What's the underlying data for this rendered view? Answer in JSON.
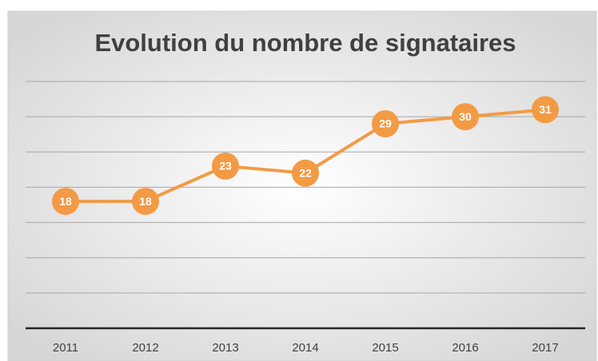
{
  "chart_data": {
    "type": "line",
    "title": "Evolution du nombre de signataires",
    "categories": [
      "2011",
      "2012",
      "2013",
      "2014",
      "2015",
      "2016",
      "2017"
    ],
    "values": [
      18,
      18,
      23,
      22,
      29,
      30,
      31
    ],
    "color": "#f39a45",
    "ylim": [
      0,
      35
    ],
    "yticks": [
      0,
      5,
      10,
      15,
      20,
      25,
      30,
      35
    ],
    "grid": true
  }
}
